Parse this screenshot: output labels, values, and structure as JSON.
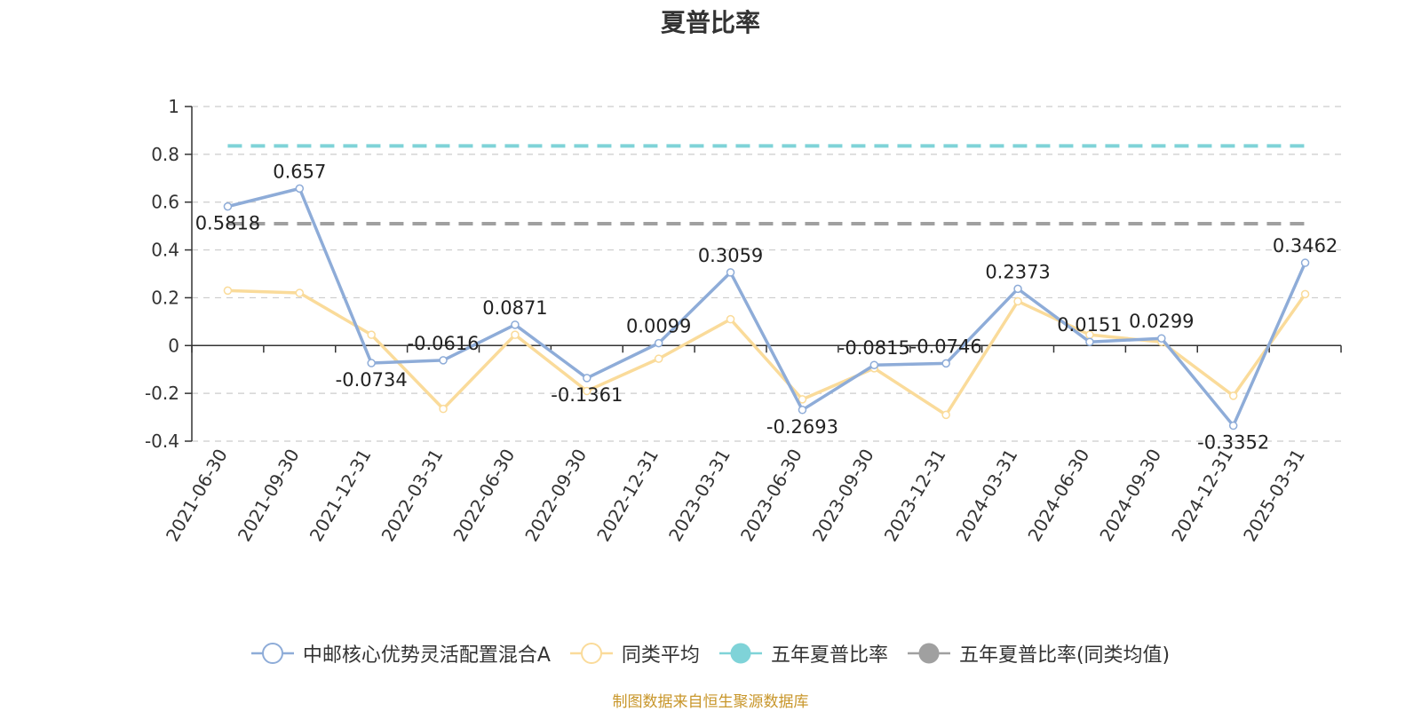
{
  "chart_data": {
    "type": "line",
    "title": "夏普比率",
    "categories": [
      "2021-06-30",
      "2021-09-30",
      "2021-12-31",
      "2022-03-31",
      "2022-06-30",
      "2022-09-30",
      "2022-12-31",
      "2023-03-31",
      "2023-06-30",
      "2023-09-30",
      "2023-12-31",
      "2024-03-31",
      "2024-06-30",
      "2024-09-30",
      "2024-12-31",
      "2025-03-31"
    ],
    "ylim": [
      -0.4,
      1
    ],
    "yticks": [
      -0.4,
      -0.2,
      0,
      0.2,
      0.4,
      0.6,
      0.8,
      1
    ],
    "ytick_labels": [
      "-0.4",
      "-0.2",
      "0",
      "0.2",
      "0.4",
      "0.6",
      "0.8",
      "1"
    ],
    "grid": true,
    "legend_position": "bottom",
    "series": [
      {
        "name": "中邮核心优势灵活配置混合A",
        "color": "#8eacd8",
        "values": [
          0.5818,
          0.657,
          -0.0734,
          -0.0616,
          0.0871,
          -0.1361,
          0.0099,
          0.3059,
          -0.2693,
          -0.0815,
          -0.0746,
          0.2373,
          0.0151,
          0.0299,
          -0.3352,
          0.3462
        ],
        "labels": [
          "0.5818",
          "0.657",
          "-0.0734",
          "-0.0616",
          "0.0871",
          "-0.1361",
          "0.0099",
          "0.3059",
          "-0.2693",
          "-0.0815",
          "-0.0746",
          "0.2373",
          "0.0151",
          "0.0299",
          "-0.3352",
          "0.3462"
        ]
      },
      {
        "name": "同类平均",
        "color": "#fadb9a",
        "values": [
          0.23,
          0.22,
          0.045,
          -0.265,
          0.045,
          -0.19,
          -0.055,
          0.11,
          -0.225,
          -0.095,
          -0.29,
          0.185,
          0.045,
          0.015,
          -0.21,
          0.215
        ]
      },
      {
        "name": "五年夏普比率",
        "color": "#7fd3d8",
        "constant": 0.835
      },
      {
        "name": "五年夏普比率(同类均值)",
        "color": "#a0a0a0",
        "constant": 0.51
      }
    ]
  },
  "source": "制图数据来自恒生聚源数据库"
}
